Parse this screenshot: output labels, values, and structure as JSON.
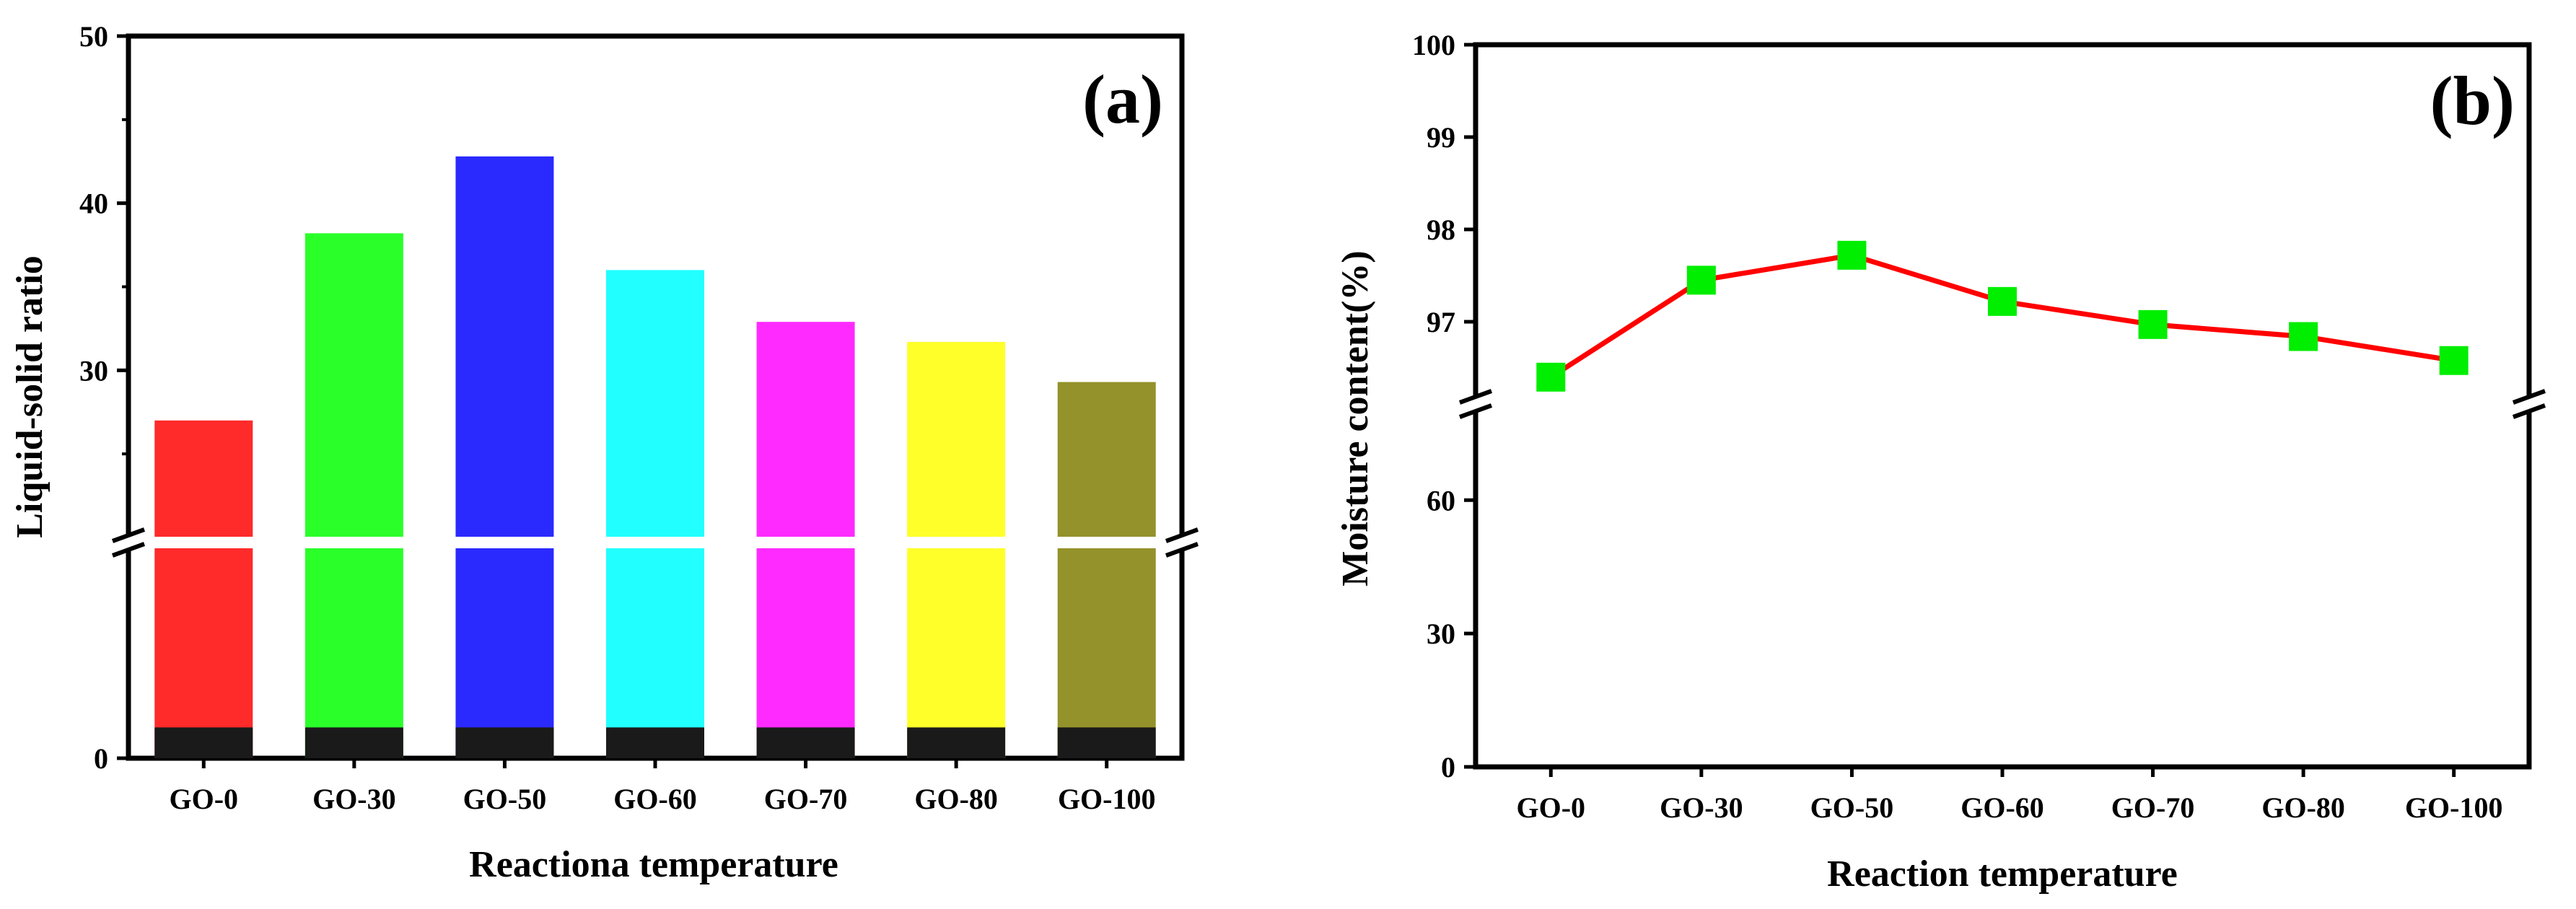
{
  "chart_data": [
    {
      "type": "bar",
      "panel_label": "(a)",
      "xlabel": "Reactiona temperature",
      "ylabel": "Liquid-solid ratio",
      "categories": [
        "GO-0",
        "GO-30",
        "GO-50",
        "GO-60",
        "GO-70",
        "GO-80",
        "GO-100"
      ],
      "values": [
        27.0,
        38.2,
        42.8,
        36.0,
        32.9,
        31.7,
        29.3
      ],
      "colors": [
        "#ff2a2a",
        "#2aff2a",
        "#2a2aff",
        "#22ffff",
        "#ff2aff",
        "#ffff2a",
        "#94922a"
      ],
      "base_color": "#1a1a1a",
      "base_value": 2.2,
      "axis_break": true,
      "y_ticks": [
        "0",
        "30",
        "40",
        "50"
      ],
      "ylim_lower": [
        0,
        15
      ],
      "ylim_upper": [
        20,
        50
      ],
      "grid": false,
      "legend": "none"
    },
    {
      "type": "line",
      "panel_label": "(b)",
      "xlabel": "Reaction temperature",
      "ylabel": "Moisture content(%)",
      "categories": [
        "GO-0",
        "GO-30",
        "GO-50",
        "GO-60",
        "GO-70",
        "GO-80",
        "GO-100"
      ],
      "values": [
        96.4,
        97.45,
        97.72,
        97.22,
        96.97,
        96.84,
        96.58
      ],
      "line_color": "#ff0000",
      "marker": "square",
      "marker_color": "#00ee00",
      "axis_break": true,
      "y_ticks_lower": [
        "0",
        "30",
        "60"
      ],
      "y_ticks_upper": [
        "97",
        "98",
        "99",
        "100"
      ],
      "ylim_lower": [
        0,
        80
      ],
      "ylim_upper": [
        96.0,
        100.0
      ],
      "grid": false,
      "legend": "none"
    }
  ]
}
